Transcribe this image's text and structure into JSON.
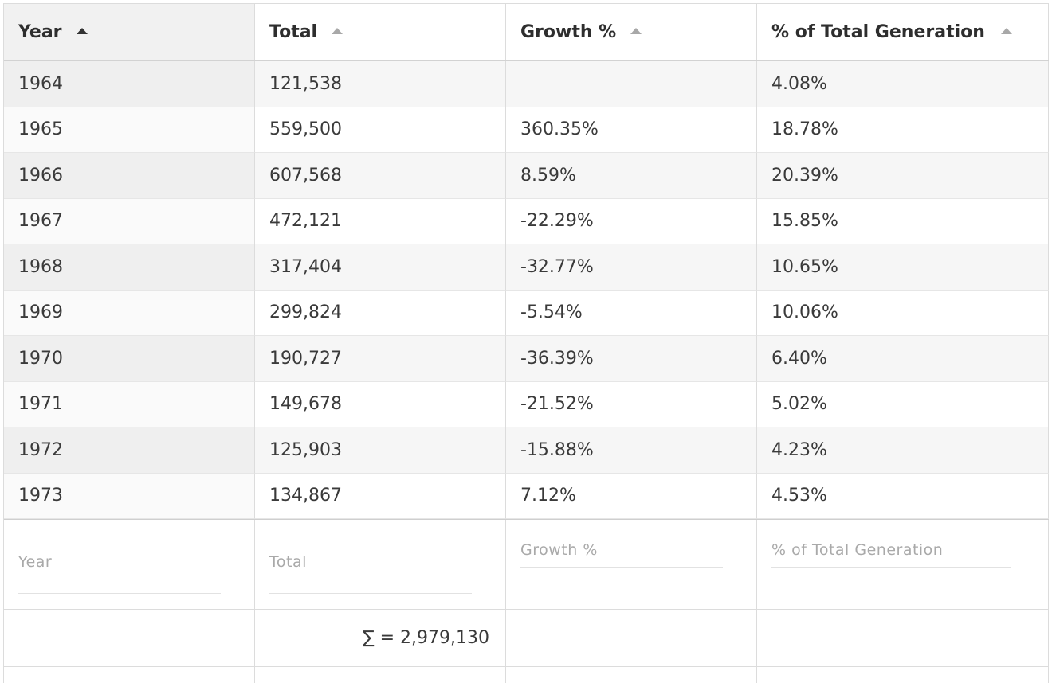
{
  "columns": [
    {
      "label": "Year",
      "sort": "active"
    },
    {
      "label": "Total",
      "sort": "inactive"
    },
    {
      "label": "Growth %",
      "sort": "inactive"
    },
    {
      "label": "% of Total Generation",
      "sort": "inactive"
    }
  ],
  "rows": [
    {
      "year": "1964",
      "total": "121,538",
      "growth": "",
      "pct": "4.08%"
    },
    {
      "year": "1965",
      "total": "559,500",
      "growth": "360.35%",
      "pct": "18.78%"
    },
    {
      "year": "1966",
      "total": "607,568",
      "growth": "8.59%",
      "pct": "20.39%"
    },
    {
      "year": "1967",
      "total": "472,121",
      "growth": "-22.29%",
      "pct": "15.85%"
    },
    {
      "year": "1968",
      "total": "317,404",
      "growth": "-32.77%",
      "pct": "10.65%"
    },
    {
      "year": "1969",
      "total": "299,824",
      "growth": "-5.54%",
      "pct": "10.06%"
    },
    {
      "year": "1970",
      "total": "190,727",
      "growth": "-36.39%",
      "pct": "6.40%"
    },
    {
      "year": "1971",
      "total": "149,678",
      "growth": "-21.52%",
      "pct": "5.02%"
    },
    {
      "year": "1972",
      "total": "125,903",
      "growth": "-15.88%",
      "pct": "4.23%"
    },
    {
      "year": "1973",
      "total": "134,867",
      "growth": "7.12%",
      "pct": "4.53%"
    }
  ],
  "filters": {
    "year_placeholder": "Year",
    "total_placeholder": "Total",
    "growth_placeholder": "Growth %",
    "pct_placeholder": "% of Total Generation"
  },
  "summary": {
    "total_sum": "∑ = 2,979,130"
  },
  "icons": {
    "sort_active": "sort-ascending-icon",
    "sort_inactive": "sort-ascending-icon"
  },
  "colors": {
    "header_sorted_bg": "#f1f1f1",
    "row_stripe": "#f6f6f6",
    "border": "#dcdcdc"
  }
}
